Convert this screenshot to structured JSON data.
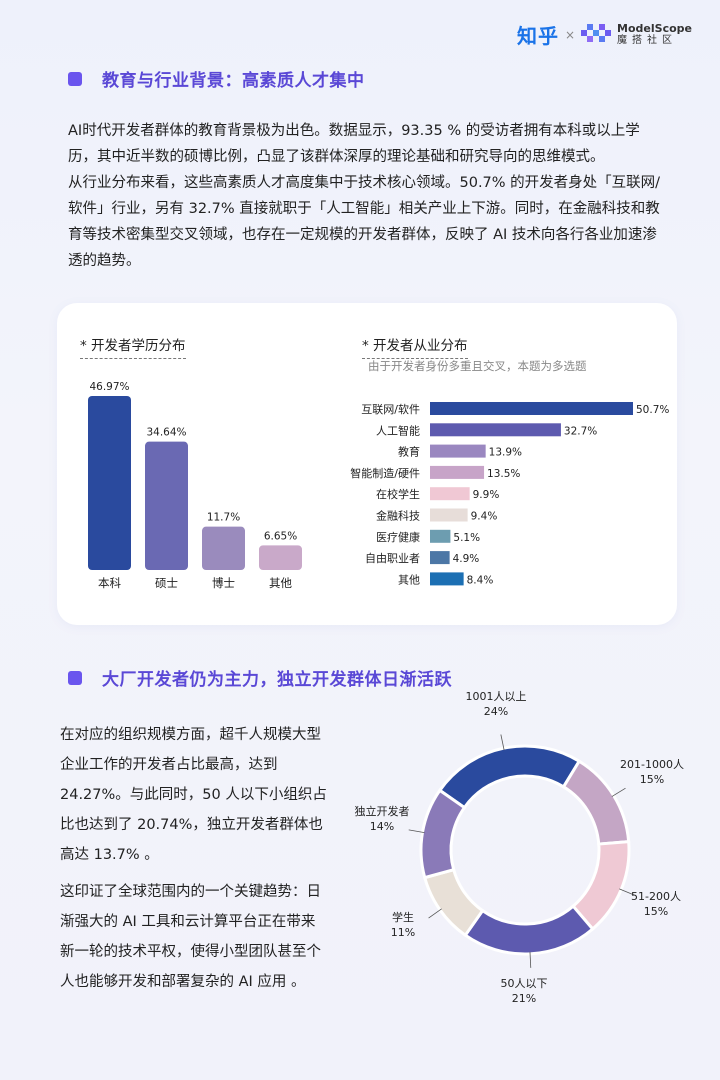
{
  "header": {
    "zhihu_logo": "知乎",
    "separator": "×",
    "modelscope_en": "ModelScope",
    "modelscope_cn": "魔搭社区"
  },
  "section1": {
    "title": "教育与行业背景：高素质人才集中",
    "paragraph_lines": [
      "AI时代开发者群体的教育背景极为出色。数据显示，93.35 % 的受访者拥有本科或以上学",
      "历，其中近半数的硕博比例，凸显了该群体深厚的理论基础和研究导向的思维模式。",
      "从行业分布来看，这些高素质人才高度集中于技术核心领域。50.7% 的开发者身处「互联网/",
      "软件」行业，另有 32.7% 直接就职于「人工智能」相关产业上下游。同时，在金融科技和教",
      "育等技术密集型交叉领域，也存在一定规模的开发者群体，反映了 AI 技术向各行各业加速渗",
      "透的趋势。"
    ]
  },
  "section2": {
    "title": "大厂开发者仍为主力，独立开发群体日渐活跃",
    "paragraph1_lines": [
      "在对应的组织规模方面，超千人规模大型",
      "企业工作的开发者占比最高，达到",
      "24.27%。与此同时，50 人以下小组织占",
      "比也达到了 20.74%，独立开发者群体也",
      "高达 13.7% 。"
    ],
    "paragraph2_lines": [
      "这印证了全球范围内的一个关键趋势：日",
      "渐强大的 AI 工具和云计算平台正在带来",
      "新一轮的技术平权，使得小型团队甚至个",
      "人也能够开发和部署复杂的 AI 应用 。"
    ]
  },
  "chart_data": [
    {
      "type": "bar",
      "title": "* 开发者学历分布",
      "categories": [
        "本科",
        "硕士",
        "博士",
        "其他"
      ],
      "values": [
        46.97,
        34.64,
        11.7,
        6.65
      ],
      "value_labels": [
        "46.97%",
        "34.64%",
        "11.7%",
        "6.65%"
      ],
      "colors": [
        "#2a4a9e",
        "#6a69b3",
        "#9a8bbd",
        "#c9a9c9"
      ],
      "ylim": [
        0,
        50
      ]
    },
    {
      "type": "bar",
      "orientation": "horizontal",
      "title": "* 开发者从业分布",
      "subtitle": "由于开发者身份多重且交叉，本题为多选题",
      "categories": [
        "互联网/软件",
        "人工智能",
        "教育",
        "智能制造/硬件",
        "在校学生",
        "金融科技",
        "医疗健康",
        "自由职业者",
        "其他"
      ],
      "values": [
        50.7,
        32.7,
        13.9,
        13.5,
        9.9,
        9.4,
        5.1,
        4.9,
        8.4
      ],
      "value_labels": [
        "50.7%",
        "32.7%",
        "13.9%",
        "13.5%",
        "9.9%",
        "9.4%",
        "5.1%",
        "4.9%",
        "8.4%"
      ],
      "colors": [
        "#2a4a9e",
        "#5d5aaf",
        "#9a87c0",
        "#c7a4c8",
        "#f0c8d4",
        "#e7ddd9",
        "#6d9db0",
        "#4c77a6",
        "#1c6fb3"
      ],
      "xlim": [
        0,
        50.7
      ]
    },
    {
      "type": "pie",
      "style": "donut",
      "categories": [
        "1001人以上",
        "201-1000人",
        "51-200人",
        "50人以下",
        "学生",
        "独立开发者"
      ],
      "values": [
        24,
        15,
        15,
        21,
        11,
        14
      ],
      "value_labels": [
        "24%",
        "15%",
        "15%",
        "21%",
        "11%",
        "14%"
      ],
      "colors": [
        "#2a4a9e",
        "#c4a6c5",
        "#efc9d4",
        "#5d5aaf",
        "#e8e0d7",
        "#8a7ab8"
      ]
    }
  ]
}
